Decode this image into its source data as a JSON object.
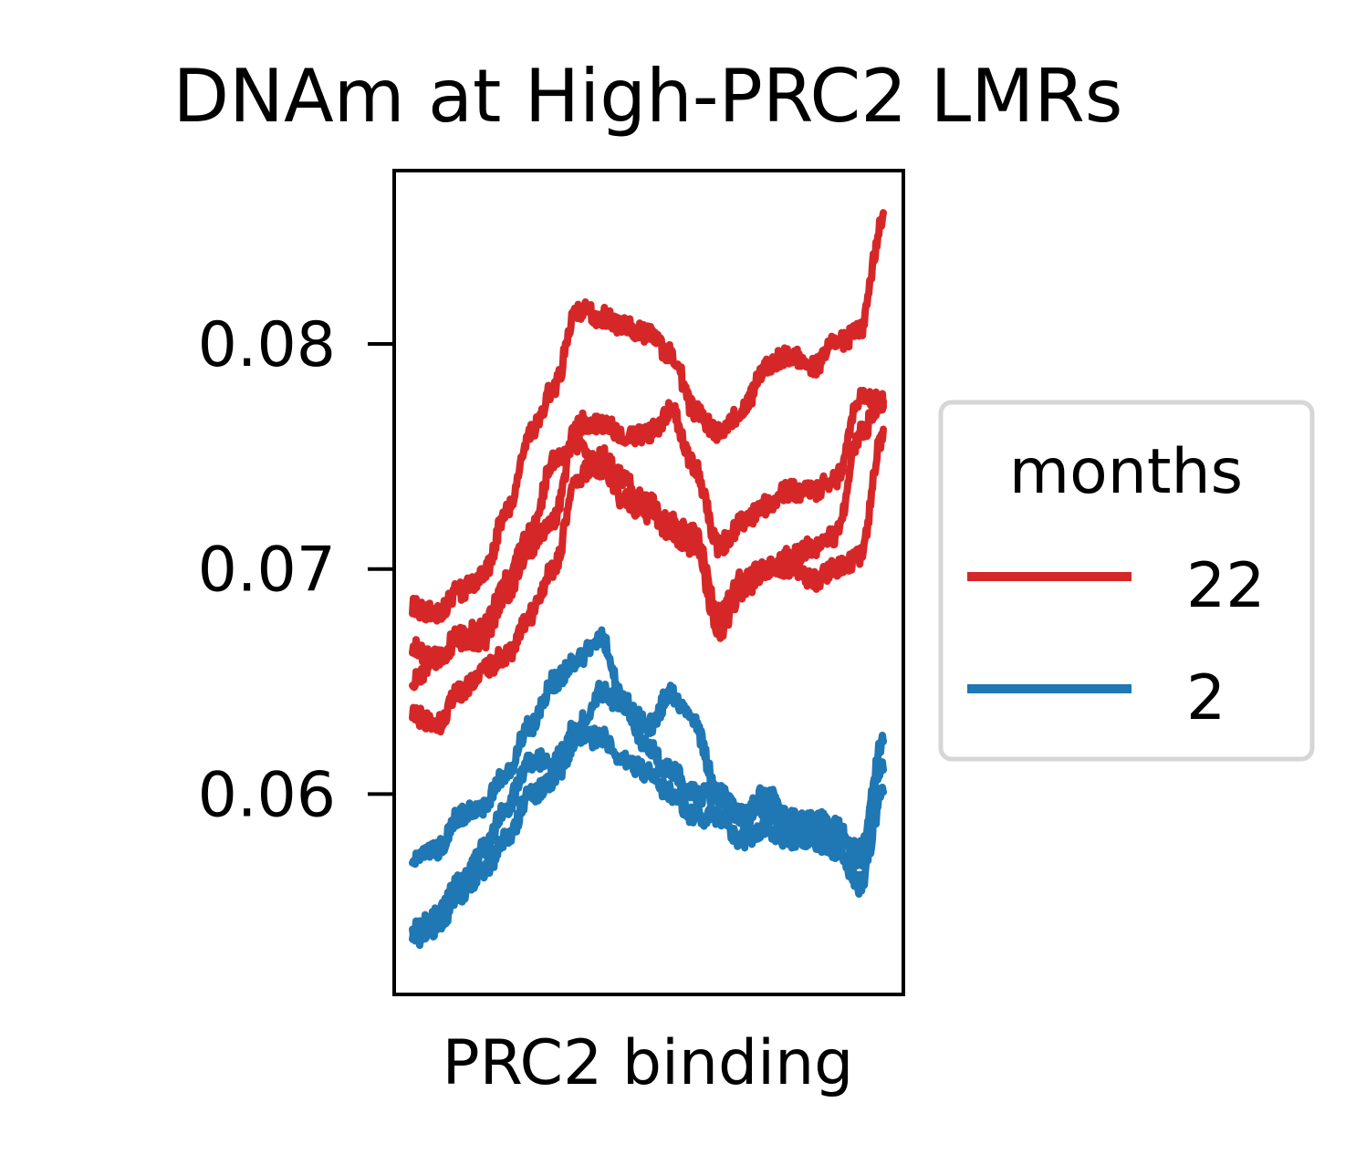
{
  "chart_data": {
    "type": "line",
    "title": "DNAm at High-PRC2 LMRs",
    "xlabel": "PRC2 binding",
    "ylabel": "",
    "ylim": [
      0.0511,
      0.0877
    ],
    "yticks": [
      "0.08",
      "0.07",
      "0.06"
    ],
    "ytick_values": [
      0.08,
      0.07,
      0.06
    ],
    "x": [
      0,
      0.05,
      0.1,
      0.15,
      0.2,
      0.25,
      0.3,
      0.35,
      0.4,
      0.45,
      0.5,
      0.55,
      0.6,
      0.65,
      0.7,
      0.75,
      0.8,
      0.85,
      0.9,
      0.95,
      1.0
    ],
    "grid": false,
    "legend": {
      "title": "months",
      "placement": "center-right",
      "entries": [
        {
          "label": "22",
          "color": "#d62728"
        },
        {
          "label": "2",
          "color": "#1f77b4"
        }
      ]
    },
    "series": [
      {
        "group": "22",
        "color": "#d62728",
        "values": [
          0.0683,
          0.068,
          0.069,
          0.0697,
          0.0725,
          0.076,
          0.078,
          0.0815,
          0.0812,
          0.0808,
          0.0805,
          0.0795,
          0.077,
          0.076,
          0.077,
          0.079,
          0.0795,
          0.079,
          0.08,
          0.0805,
          0.0855
        ]
      },
      {
        "group": "22",
        "color": "#d62728",
        "values": [
          0.0665,
          0.066,
          0.067,
          0.0668,
          0.069,
          0.071,
          0.0722,
          0.0765,
          0.0765,
          0.076,
          0.076,
          0.077,
          0.0745,
          0.071,
          0.072,
          0.0728,
          0.0735,
          0.0735,
          0.074,
          0.0775,
          0.0775
        ]
      },
      {
        "group": "22",
        "color": "#d62728",
        "values": [
          0.065,
          0.066,
          0.0668,
          0.0675,
          0.0695,
          0.0715,
          0.0748,
          0.0755,
          0.0745,
          0.073,
          0.0725,
          0.072,
          0.0715,
          0.068,
          0.0695,
          0.07,
          0.0705,
          0.071,
          0.0715,
          0.076,
          0.0775
        ]
      },
      {
        "group": "22",
        "color": "#d62728",
        "values": [
          0.0635,
          0.063,
          0.0645,
          0.0655,
          0.0662,
          0.068,
          0.07,
          0.074,
          0.075,
          0.074,
          0.073,
          0.0715,
          0.071,
          0.0672,
          0.069,
          0.07,
          0.07,
          0.0695,
          0.07,
          0.0705,
          0.076
        ]
      },
      {
        "group": "2",
        "color": "#1f77b4",
        "values": [
          0.057,
          0.0575,
          0.059,
          0.0595,
          0.061,
          0.063,
          0.065,
          0.066,
          0.067,
          0.064,
          0.063,
          0.0645,
          0.063,
          0.06,
          0.059,
          0.06,
          0.059,
          0.0585,
          0.058,
          0.0575,
          0.0615
        ]
      },
      {
        "group": "2",
        "color": "#1f77b4",
        "values": [
          0.054,
          0.0545,
          0.056,
          0.0575,
          0.0595,
          0.0615,
          0.0615,
          0.063,
          0.0645,
          0.064,
          0.062,
          0.061,
          0.06,
          0.06,
          0.059,
          0.0595,
          0.0585,
          0.059,
          0.0585,
          0.057,
          0.0625
        ]
      },
      {
        "group": "2",
        "color": "#1f77b4",
        "values": [
          0.0535,
          0.054,
          0.0555,
          0.0565,
          0.058,
          0.06,
          0.0605,
          0.0625,
          0.0625,
          0.0615,
          0.061,
          0.06,
          0.059,
          0.059,
          0.058,
          0.0585,
          0.058,
          0.058,
          0.0575,
          0.056,
          0.06
        ]
      }
    ]
  }
}
